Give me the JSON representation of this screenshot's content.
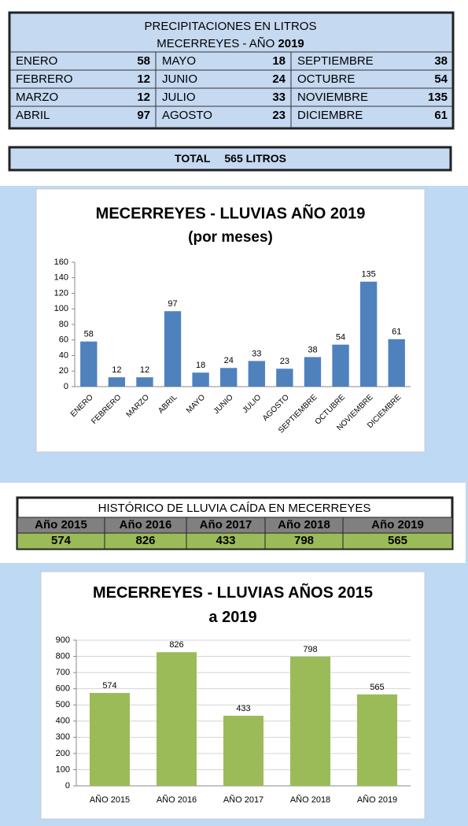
{
  "monthly_table": {
    "title": "PRECIPITACIONES EN LITROS",
    "subtitle": "MECERREYES - AÑO",
    "year": "2019",
    "rows": [
      [
        {
          "month": "ENERO",
          "value": 58
        },
        {
          "month": "MAYO",
          "value": 18
        },
        {
          "month": "SEPTIEMBRE",
          "value": 38
        }
      ],
      [
        {
          "month": "FEBRERO",
          "value": 12
        },
        {
          "month": "JUNIO",
          "value": 24
        },
        {
          "month": "OCTUBRE",
          "value": 54
        }
      ],
      [
        {
          "month": "MARZO",
          "value": 12
        },
        {
          "month": "JULIO",
          "value": 33
        },
        {
          "month": "NOVIEMBRE",
          "value": 135
        }
      ],
      [
        {
          "month": "ABRIL",
          "value": 97
        },
        {
          "month": "AGOSTO",
          "value": 23
        },
        {
          "month": "DICIEMBRE",
          "value": 61
        }
      ]
    ]
  },
  "total": {
    "label": "TOTAL",
    "value": 565,
    "unit": "LITROS"
  },
  "history_table": {
    "title": "HISTÓRICO DE LLUVIA CAÍDA EN MECERREYES",
    "headers": [
      "Año 2015",
      "Año 2016",
      "Año 2017",
      "Año 2018",
      "Año 2019"
    ],
    "values": [
      574,
      826,
      433,
      798,
      565
    ]
  },
  "chart_data": [
    {
      "type": "bar",
      "title": "MECERREYES - LLUVIAS AÑO 2019",
      "subtitle": "(por meses)",
      "categories": [
        "ENERO",
        "FEBRERO",
        "MARZO",
        "ABRIL",
        "MAYO",
        "JUNIO",
        "JULIO",
        "AGOSTO",
        "SEPTIEMBRE",
        "OCTUBRE",
        "NOVIEMBRE",
        "DICIEMBRE"
      ],
      "values": [
        58,
        12,
        12,
        97,
        18,
        24,
        33,
        23,
        38,
        54,
        135,
        61
      ],
      "color": "#4f81bd",
      "ylim": [
        0,
        160
      ],
      "yticks": [
        0,
        20,
        40,
        60,
        80,
        100,
        120,
        140,
        160
      ],
      "grid": false
    },
    {
      "type": "bar",
      "title": "MECERREYES - LLUVIAS AÑOS 2015 a 2019",
      "categories": [
        "AÑO 2015",
        "AÑO 2016",
        "AÑO 2017",
        "AÑO 2018",
        "AÑO 2019"
      ],
      "values": [
        574,
        826,
        433,
        798,
        565
      ],
      "color": "#9bbb59",
      "ylim": [
        0,
        900
      ],
      "yticks": [
        0,
        100,
        200,
        300,
        400,
        500,
        600,
        700,
        800,
        900
      ],
      "grid": true
    }
  ]
}
